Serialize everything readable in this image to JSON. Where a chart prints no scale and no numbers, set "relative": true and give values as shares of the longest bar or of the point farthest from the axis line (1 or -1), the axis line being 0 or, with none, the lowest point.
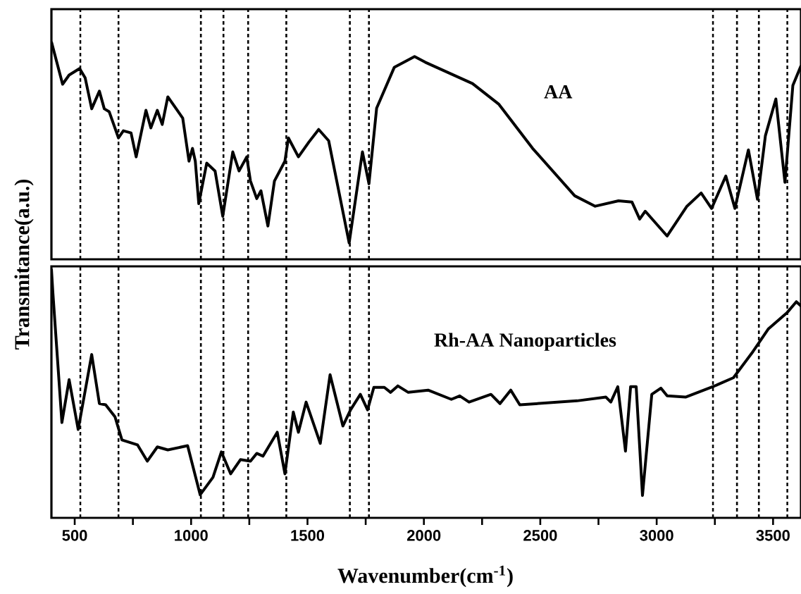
{
  "chart_data": [
    {
      "type": "line",
      "relative": true,
      "xlim": [
        400,
        3620
      ],
      "tick_labels": false,
      "series": [
        {
          "name": "AA",
          "color": "#000000",
          "x": [
            400,
            448,
            476,
            521,
            545,
            573,
            606,
            627,
            648,
            688,
            709,
            742,
            764,
            806,
            827,
            855,
            876,
            900,
            964,
            991,
            1006,
            1018,
            1033,
            1067,
            1103,
            1136,
            1179,
            1206,
            1239,
            1255,
            1282,
            1300,
            1330,
            1358,
            1403,
            1418,
            1461,
            1506,
            1548,
            1591,
            1679,
            1736,
            1764,
            1797,
            1873,
            1960,
            2006,
            2209,
            2321,
            2467,
            2648,
            2736,
            2836,
            2894,
            2927,
            2951,
            3045,
            3130,
            3191,
            3236,
            3297,
            3336,
            3394,
            3433,
            3467,
            3512,
            3551,
            3585,
            3620
          ],
          "values": [
            1.0,
            0.805,
            0.847,
            0.877,
            0.834,
            0.692,
            0.773,
            0.692,
            0.679,
            0.558,
            0.591,
            0.581,
            0.471,
            0.685,
            0.604,
            0.685,
            0.62,
            0.747,
            0.649,
            0.451,
            0.51,
            0.451,
            0.256,
            0.442,
            0.406,
            0.198,
            0.494,
            0.406,
            0.471,
            0.36,
            0.279,
            0.315,
            0.153,
            0.36,
            0.451,
            0.558,
            0.471,
            0.539,
            0.597,
            0.545,
            0.075,
            0.494,
            0.347,
            0.695,
            0.883,
            0.932,
            0.906,
            0.808,
            0.714,
            0.51,
            0.292,
            0.244,
            0.269,
            0.263,
            0.185,
            0.221,
            0.107,
            0.244,
            0.305,
            0.234,
            0.383,
            0.234,
            0.503,
            0.276,
            0.568,
            0.737,
            0.354,
            0.799,
            0.89
          ]
        }
      ],
      "ref_lines": [
        {
          "axis": "x",
          "value": 524,
          "line_style": "dotted"
        },
        {
          "axis": "x",
          "value": 688,
          "line_style": "dotted"
        },
        {
          "axis": "x",
          "value": 1042,
          "line_style": "dotted"
        },
        {
          "axis": "x",
          "value": 1139,
          "line_style": "dotted"
        },
        {
          "axis": "x",
          "value": 1245,
          "line_style": "dotted"
        },
        {
          "axis": "x",
          "value": 1409,
          "line_style": "dotted"
        },
        {
          "axis": "x",
          "value": 1682,
          "line_style": "dotted"
        },
        {
          "axis": "x",
          "value": 1764,
          "line_style": "dotted"
        },
        {
          "axis": "x",
          "value": 3242,
          "line_style": "dotted"
        },
        {
          "axis": "x",
          "value": 3345,
          "line_style": "dotted"
        },
        {
          "axis": "x",
          "value": 3439,
          "line_style": "dotted"
        },
        {
          "axis": "x",
          "value": 3561,
          "line_style": "dotted"
        }
      ]
    },
    {
      "type": "line",
      "relative": true,
      "xlim": [
        400,
        3620
      ],
      "tick_labels": "x",
      "xlabel": "Wavenumber(cm$^{-1}$)",
      "ylabel": "Transmitance(a.u.)",
      "xticks": [
        500,
        {
          "value": 750,
          "label": null
        },
        1000,
        {
          "value": 1250,
          "label": null
        },
        1500,
        {
          "value": 1750,
          "label": null
        },
        2000,
        {
          "value": 2250,
          "label": null
        },
        2500,
        {
          "value": 2750,
          "label": null
        },
        3000,
        {
          "value": 3250,
          "label": null
        },
        3500
      ],
      "series": [
        {
          "name": "Rh-AA  Nanoparticles",
          "color": "#000000",
          "x": [
            400,
            406,
            445,
            476,
            515,
            573,
            606,
            633,
            673,
            703,
            770,
            812,
            855,
            900,
            985,
            1039,
            1094,
            1130,
            1170,
            1212,
            1255,
            1282,
            1309,
            1370,
            1403,
            1439,
            1461,
            1494,
            1555,
            1597,
            1652,
            1685,
            1727,
            1758,
            1785,
            1830,
            1857,
            1888,
            1933,
            2018,
            2118,
            2154,
            2194,
            2288,
            2327,
            2373,
            2412,
            2658,
            2782,
            2803,
            2833,
            2866,
            2888,
            2912,
            2939,
            2979,
            3018,
            3045,
            3124,
            3242,
            3330,
            3409,
            3479,
            3561,
            3600,
            3620
          ],
          "values": [
            1.0,
            0.907,
            0.383,
            0.555,
            0.355,
            0.656,
            0.459,
            0.454,
            0.406,
            0.313,
            0.293,
            0.228,
            0.285,
            0.273,
            0.29,
            0.093,
            0.163,
            0.265,
            0.177,
            0.234,
            0.228,
            0.259,
            0.248,
            0.344,
            0.177,
            0.425,
            0.344,
            0.465,
            0.299,
            0.575,
            0.369,
            0.434,
            0.496,
            0.434,
            0.524,
            0.524,
            0.504,
            0.53,
            0.504,
            0.513,
            0.476,
            0.49,
            0.465,
            0.496,
            0.459,
            0.513,
            0.454,
            0.47,
            0.485,
            0.465,
            0.527,
            0.268,
            0.527,
            0.527,
            0.09,
            0.496,
            0.521,
            0.49,
            0.485,
            0.527,
            0.563,
            0.662,
            0.758,
            0.825,
            0.868,
            0.851
          ]
        }
      ],
      "ref_lines": [
        {
          "axis": "x",
          "value": 524,
          "line_style": "dotted"
        },
        {
          "axis": "x",
          "value": 688,
          "line_style": "dotted"
        },
        {
          "axis": "x",
          "value": 1042,
          "line_style": "dotted"
        },
        {
          "axis": "x",
          "value": 1139,
          "line_style": "dotted"
        },
        {
          "axis": "x",
          "value": 1245,
          "line_style": "dotted"
        },
        {
          "axis": "x",
          "value": 1409,
          "line_style": "dotted"
        },
        {
          "axis": "x",
          "value": 1682,
          "line_style": "dotted"
        },
        {
          "axis": "x",
          "value": 1764,
          "line_style": "dotted"
        },
        {
          "axis": "x",
          "value": 3242,
          "line_style": "dotted"
        },
        {
          "axis": "x",
          "value": 3345,
          "line_style": "dotted"
        },
        {
          "axis": "x",
          "value": 3439,
          "line_style": "dotted"
        },
        {
          "axis": "x",
          "value": 3561,
          "line_style": "dotted"
        }
      ]
    }
  ]
}
